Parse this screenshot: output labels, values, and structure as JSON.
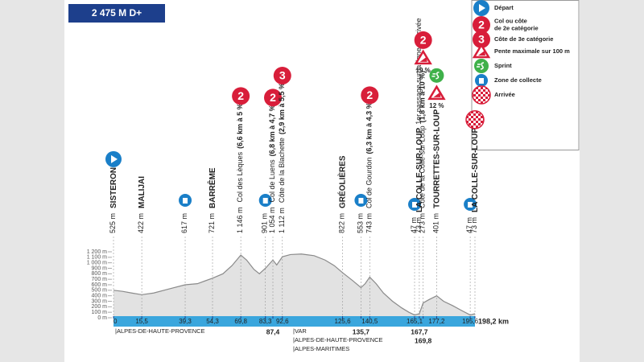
{
  "header": {
    "title": "2 475 M D+"
  },
  "legend": [
    {
      "icon": "start",
      "label": [
        "Départ"
      ]
    },
    {
      "icon": "climb",
      "badge": "2",
      "label": [
        "Col ou côte",
        "de 2e catégorie"
      ]
    },
    {
      "icon": "climb",
      "badge": "3",
      "label": [
        "Côte de 3e catégorie"
      ]
    },
    {
      "icon": "gradient",
      "label": [
        "Pente maximale sur 100 m"
      ]
    },
    {
      "icon": "sprint",
      "label": [
        "Sprint"
      ]
    },
    {
      "icon": "collect",
      "label": [
        "Zone de collecte"
      ]
    },
    {
      "icon": "finish",
      "label": [
        "Arrivée"
      ]
    }
  ],
  "waypoints": [
    {
      "km": 0,
      "kind": "town",
      "altitude": "525 m",
      "name": "SISTERON",
      "icons": [
        {
          "type": "start"
        }
      ]
    },
    {
      "km": 15.5,
      "kind": "town",
      "altitude": "422 m",
      "name": "MALIJAI",
      "icons": []
    },
    {
      "km": 39.3,
      "kind": "collect",
      "altitude": "617 m",
      "icons": [
        {
          "type": "collect"
        }
      ]
    },
    {
      "km": 54.3,
      "kind": "town",
      "altitude": "721 m",
      "name": "BARRÊME",
      "icons": []
    },
    {
      "km": 69.8,
      "kind": "climb",
      "altitude": "1 146 m",
      "name": "Col des Lèques",
      "detail": "(6,6 km à 5 %)",
      "icons": [
        {
          "type": "climb",
          "badge": "2"
        }
      ]
    },
    {
      "km": 83.3,
      "kind": "collect",
      "altitude": "901 m",
      "icons": [
        {
          "type": "collect"
        }
      ]
    },
    {
      "km": 87.4,
      "kind": "climb",
      "altitude": "1 054 m",
      "name": "Col de Luens",
      "detail": "(6,8 km à 4,7 %)",
      "icons": [
        {
          "type": "climb",
          "badge": "2"
        }
      ]
    },
    {
      "km": 92.6,
      "kind": "climb",
      "altitude": "1 112 m",
      "name": "Côte de la Blachette",
      "detail": "(2,9 km à 5,5 %)",
      "icons": [
        {
          "type": "climb",
          "badge": "3"
        }
      ]
    },
    {
      "km": 125.6,
      "kind": "town",
      "altitude": "822 m",
      "name": "GRÉOLIÈRES",
      "icons": []
    },
    {
      "km": 135.7,
      "kind": "collect",
      "altitude": "553 m",
      "icons": [
        {
          "type": "collect"
        }
      ]
    },
    {
      "km": 140.5,
      "kind": "climb",
      "altitude": "743 m",
      "name": "Col de Gourdon",
      "detail": "(6,3 km à 4,3 %)",
      "icons": [
        {
          "type": "climb",
          "badge": "2"
        }
      ]
    },
    {
      "km": 165.1,
      "kind": "collect",
      "altitude": "47 m",
      "icons": [
        {
          "type": "collect"
        }
      ]
    },
    {
      "km": 167.7,
      "kind": "town",
      "altitude": "73 m",
      "name": "LA COLLE-SUR-LOUP",
      "detail": "1er passage sur la ligne d'arrivée",
      "icons": []
    },
    {
      "km": 169.8,
      "kind": "climb",
      "altitude": "273 m",
      "name": "Côte de la Colle-sur-Loup",
      "detail": "(1,8 km à 10 %)",
      "icons": [
        {
          "type": "gradient",
          "label": "19 %"
        },
        {
          "type": "climb",
          "badge": "2"
        }
      ]
    },
    {
      "km": 177.2,
      "kind": "town",
      "altitude": "401 m",
      "name": "TOURRETTES-SUR-LOUP",
      "icons": [
        {
          "type": "gradient",
          "label": "12 %"
        },
        {
          "type": "sprint"
        }
      ]
    },
    {
      "km": 195.6,
      "kind": "collect",
      "altitude": "47 m",
      "icons": [
        {
          "type": "collect"
        }
      ]
    },
    {
      "km": 198.2,
      "kind": "town",
      "altitude": "73 m",
      "name": "LA COLLE-SUR-LOUP",
      "icons": [
        {
          "type": "finish"
        }
      ]
    }
  ],
  "regions": [
    "|ALPES-DE-HAUTE-PROVENCE",
    "|VAR",
    "|ALPES-DE-HAUTE-PROVENCE",
    "|ALPES-MARITIMES"
  ],
  "chart_data": {
    "type": "area",
    "x": [
      0,
      5,
      10,
      15.5,
      22,
      30,
      39.3,
      46,
      54.3,
      60,
      65,
      69.8,
      73,
      77,
      80,
      83.3,
      87.4,
      89.5,
      92.6,
      97,
      103,
      110,
      116,
      121,
      125.6,
      131,
      135.7,
      138,
      140.5,
      144,
      148,
      153,
      158,
      162,
      165.1,
      167.7,
      169.8,
      173,
      177.2,
      181,
      186,
      191,
      195.6,
      198.2
    ],
    "values": [
      500,
      480,
      450,
      420,
      450,
      520,
      600,
      620,
      720,
      800,
      950,
      1140,
      1050,
      880,
      800,
      900,
      1050,
      960,
      1110,
      1150,
      1160,
      1130,
      1050,
      950,
      820,
      680,
      550,
      620,
      740,
      620,
      450,
      300,
      180,
      100,
      50,
      73,
      270,
      330,
      400,
      300,
      220,
      130,
      50,
      73
    ],
    "color": "#8a8a8a",
    "fill": "#e2e2e2",
    "xlim": [
      0,
      198.2
    ],
    "ylim": [
      0,
      1200
    ],
    "yticks": [
      {
        "value": 0,
        "label": "0 m"
      },
      {
        "value": 100,
        "label": "100 m"
      },
      {
        "value": 200,
        "label": "200 m"
      },
      {
        "value": 300,
        "label": "300 m"
      },
      {
        "value": 400,
        "label": "400 m"
      },
      {
        "value": 500,
        "label": "500 m"
      },
      {
        "value": 600,
        "label": "600 m"
      },
      {
        "value": 700,
        "label": "700 m"
      },
      {
        "value": 800,
        "label": "800 m"
      },
      {
        "value": 900,
        "label": "900 m"
      },
      {
        "value": 1000,
        "label": "1 000 m"
      },
      {
        "value": 1100,
        "label": "1 100 m"
      },
      {
        "value": 1200,
        "label": "1 200 m"
      }
    ],
    "xticks": [
      0,
      {
        "value": 15.5,
        "label": "15,5"
      },
      {
        "value": 39.3,
        "label": "39,3"
      },
      {
        "value": 54.3,
        "label": "54,3"
      },
      {
        "value": 69.8,
        "label": "69,8"
      },
      {
        "value": 83.3,
        "label": "83,3"
      },
      {
        "value": 87.4,
        "label": "87,4",
        "placement": "below"
      },
      {
        "value": 92.6,
        "label": "92,6"
      },
      {
        "value": 125.6,
        "label": "125,6"
      },
      {
        "value": 135.7,
        "label": "135,7",
        "placement": "below"
      },
      {
        "value": 140.5,
        "label": "140,5"
      },
      {
        "value": 165.1,
        "label": "165,1"
      },
      {
        "value": 167.7,
        "label": "167,7",
        "placement": "below"
      },
      {
        "value": 169.8,
        "label": "169,8",
        "placement": "below"
      },
      {
        "value": 177.2,
        "label": "177,2"
      },
      {
        "value": 195.6,
        "label": "195,6"
      },
      {
        "value": 198.2,
        "label": "198,2 km",
        "placement": "end"
      }
    ]
  }
}
